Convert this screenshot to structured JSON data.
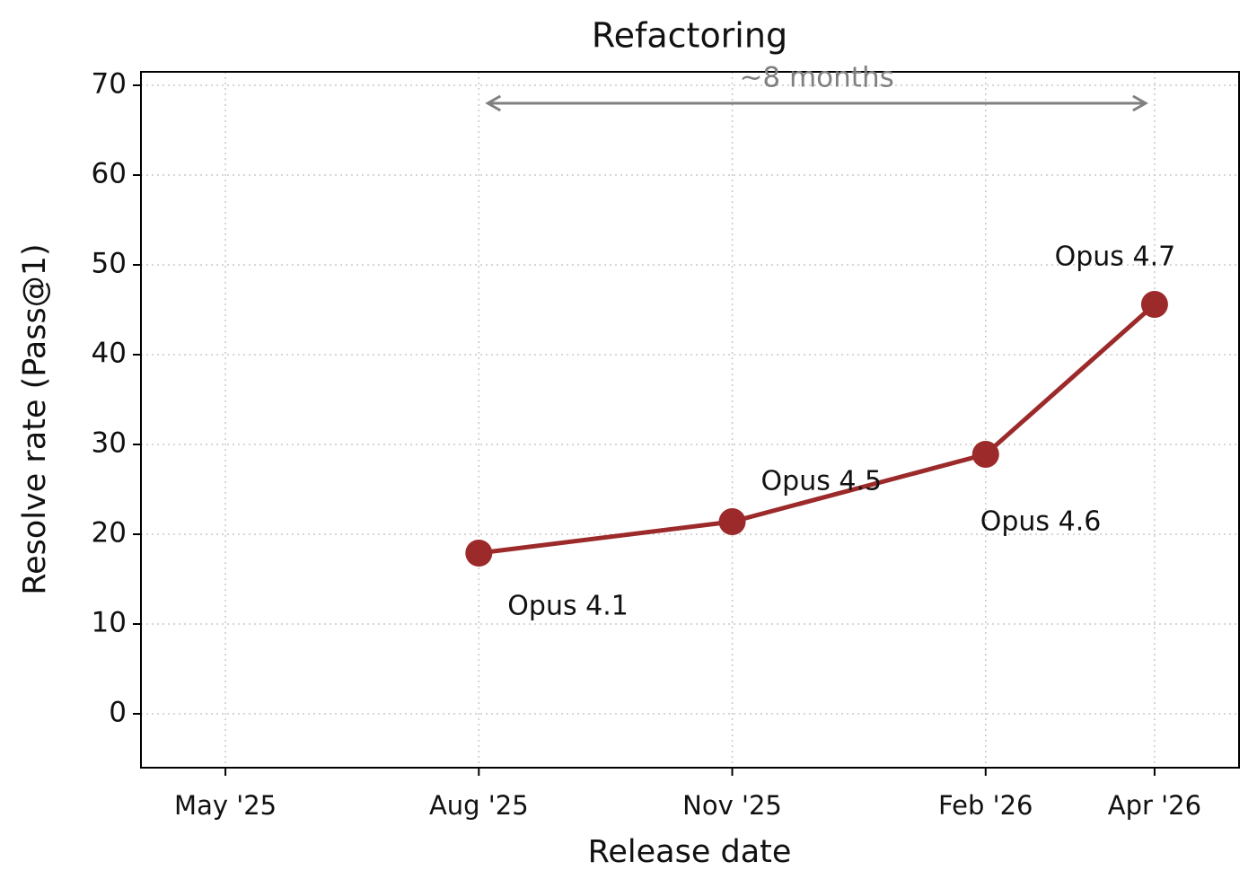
{
  "chart_data": {
    "type": "line",
    "title": "Refactoring",
    "xlabel": "Release date",
    "ylabel": "Resolve rate (Pass@1)",
    "x": [
      "2025-08",
      "2025-11",
      "2026-02",
      "2026-04"
    ],
    "series": [
      {
        "name": "Opus",
        "color": "#9c2a2a",
        "values": [
          17.9,
          21.4,
          28.9,
          45.6
        ]
      }
    ],
    "point_labels": [
      "Opus 4.1",
      "Opus 4.5",
      "Opus 4.6",
      "Opus 4.7"
    ],
    "xlim": [
      "2025-04",
      "2026-05"
    ],
    "xticks": [
      {
        "value": "2025-05",
        "label": "May '25"
      },
      {
        "value": "2025-08",
        "label": "Aug '25"
      },
      {
        "value": "2025-11",
        "label": "Nov '25"
      },
      {
        "value": "2026-02",
        "label": "Feb '26"
      },
      {
        "value": "2026-04",
        "label": "Apr '26"
      }
    ],
    "ylim": [
      -6,
      71.5
    ],
    "yticks": [
      0,
      10,
      20,
      30,
      40,
      50,
      60,
      70
    ],
    "grid": true,
    "annotation": {
      "text": "~8 months",
      "from": "2025-08",
      "to": "2026-04",
      "y": 68,
      "color": "#808080"
    }
  }
}
